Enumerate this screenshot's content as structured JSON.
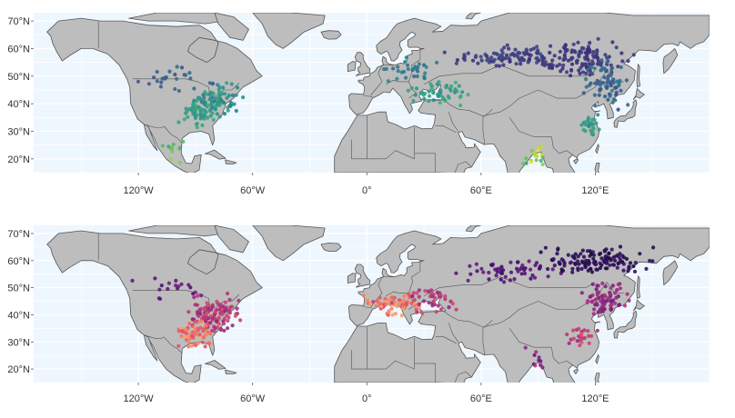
{
  "colors": {
    "ocean": "#eef6fe",
    "grid": "#ffffff",
    "land": "#bdbdbd",
    "border": "#555555",
    "label": "#333333"
  },
  "panels": [
    {
      "id": "top",
      "palette": "viridis-like"
    },
    {
      "id": "bottom",
      "palette": "magma-like"
    }
  ],
  "axes": {
    "lat_labels": [
      "20°N",
      "30°N",
      "40°N",
      "50°N",
      "60°N",
      "70°N"
    ],
    "lon_labels": [
      "120°W",
      "60°W",
      "0°",
      "60°E",
      "120°E"
    ]
  },
  "chart_data": {
    "type": "scatter",
    "title": "",
    "xlabel": "",
    "ylabel": "",
    "xlim": [
      -175,
      180
    ],
    "ylim": [
      15,
      73
    ],
    "x_ticks": [
      -120,
      -60,
      0,
      60,
      120
    ],
    "y_ticks": [
      20,
      30,
      40,
      50,
      60,
      70
    ],
    "grid": true,
    "legend": "none",
    "panels": [
      {
        "palette": [
          "#3f2a7a",
          "#3b5a8c",
          "#2a8a8e",
          "#3fb07a",
          "#a9d63a",
          "#f2e12a"
        ],
        "clusters": [
          {
            "lon": -80,
            "lat": 41,
            "spread": [
              10,
              5
            ],
            "n": 90,
            "c": [
              0.35,
              0.55
            ]
          },
          {
            "lon": -88,
            "lat": 36,
            "spread": [
              8,
              4
            ],
            "n": 40,
            "c": [
              0.45,
              0.6
            ]
          },
          {
            "lon": -100,
            "lat": 50,
            "spread": [
              14,
              4
            ],
            "n": 25,
            "c": [
              0.15,
              0.3
            ]
          },
          {
            "lon": -100,
            "lat": 24,
            "spread": [
              5,
              4
            ],
            "n": 12,
            "c": [
              0.55,
              0.8
            ]
          },
          {
            "lon": 40,
            "lat": 44,
            "spread": [
              12,
              4
            ],
            "n": 50,
            "c": [
              0.4,
              0.6
            ]
          },
          {
            "lon": 25,
            "lat": 52,
            "spread": [
              10,
              4
            ],
            "n": 30,
            "c": [
              0.25,
              0.4
            ]
          },
          {
            "lon": 80,
            "lat": 57,
            "spread": [
              28,
              3
            ],
            "n": 110,
            "c": [
              0.0,
              0.15
            ]
          },
          {
            "lon": 115,
            "lat": 56,
            "spread": [
              18,
              5
            ],
            "n": 110,
            "c": [
              0.0,
              0.1
            ]
          },
          {
            "lon": 125,
            "lat": 47,
            "spread": [
              9,
              6
            ],
            "n": 70,
            "c": [
              0.15,
              0.35
            ]
          },
          {
            "lon": 117,
            "lat": 33,
            "spread": [
              4,
              3
            ],
            "n": 25,
            "c": [
              0.4,
              0.55
            ]
          },
          {
            "lon": 88,
            "lat": 21,
            "spread": [
              5,
              3
            ],
            "n": 18,
            "c": [
              0.55,
              1.0
            ]
          }
        ]
      },
      {
        "palette": [
          "#120d32",
          "#3c0f6e",
          "#7b1f82",
          "#b73779",
          "#f05f5a",
          "#fca56e"
        ],
        "clusters": [
          {
            "lon": -80,
            "lat": 40,
            "spread": [
              10,
              5
            ],
            "n": 120,
            "c": [
              0.45,
              0.75
            ]
          },
          {
            "lon": -90,
            "lat": 33,
            "spread": [
              8,
              4
            ],
            "n": 60,
            "c": [
              0.7,
              1.0
            ]
          },
          {
            "lon": -100,
            "lat": 50,
            "spread": [
              14,
              3
            ],
            "n": 18,
            "c": [
              0.25,
              0.4
            ]
          },
          {
            "lon": 15,
            "lat": 44,
            "spread": [
              12,
              3
            ],
            "n": 70,
            "c": [
              0.65,
              1.0
            ]
          },
          {
            "lon": 35,
            "lat": 46,
            "spread": [
              10,
              4
            ],
            "n": 40,
            "c": [
              0.45,
              0.7
            ]
          },
          {
            "lon": 75,
            "lat": 56,
            "spread": [
              25,
              3
            ],
            "n": 60,
            "c": [
              0.2,
              0.35
            ]
          },
          {
            "lon": 120,
            "lat": 60,
            "spread": [
              20,
              4
            ],
            "n": 130,
            "c": [
              0.05,
              0.2
            ]
          },
          {
            "lon": 125,
            "lat": 45,
            "spread": [
              9,
              6
            ],
            "n": 80,
            "c": [
              0.35,
              0.6
            ]
          },
          {
            "lon": 112,
            "lat": 32,
            "spread": [
              6,
              3
            ],
            "n": 25,
            "c": [
              0.5,
              0.75
            ]
          },
          {
            "lon": 90,
            "lat": 24,
            "spread": [
              4,
              3
            ],
            "n": 10,
            "c": [
              0.3,
              0.6
            ]
          }
        ]
      }
    ]
  }
}
